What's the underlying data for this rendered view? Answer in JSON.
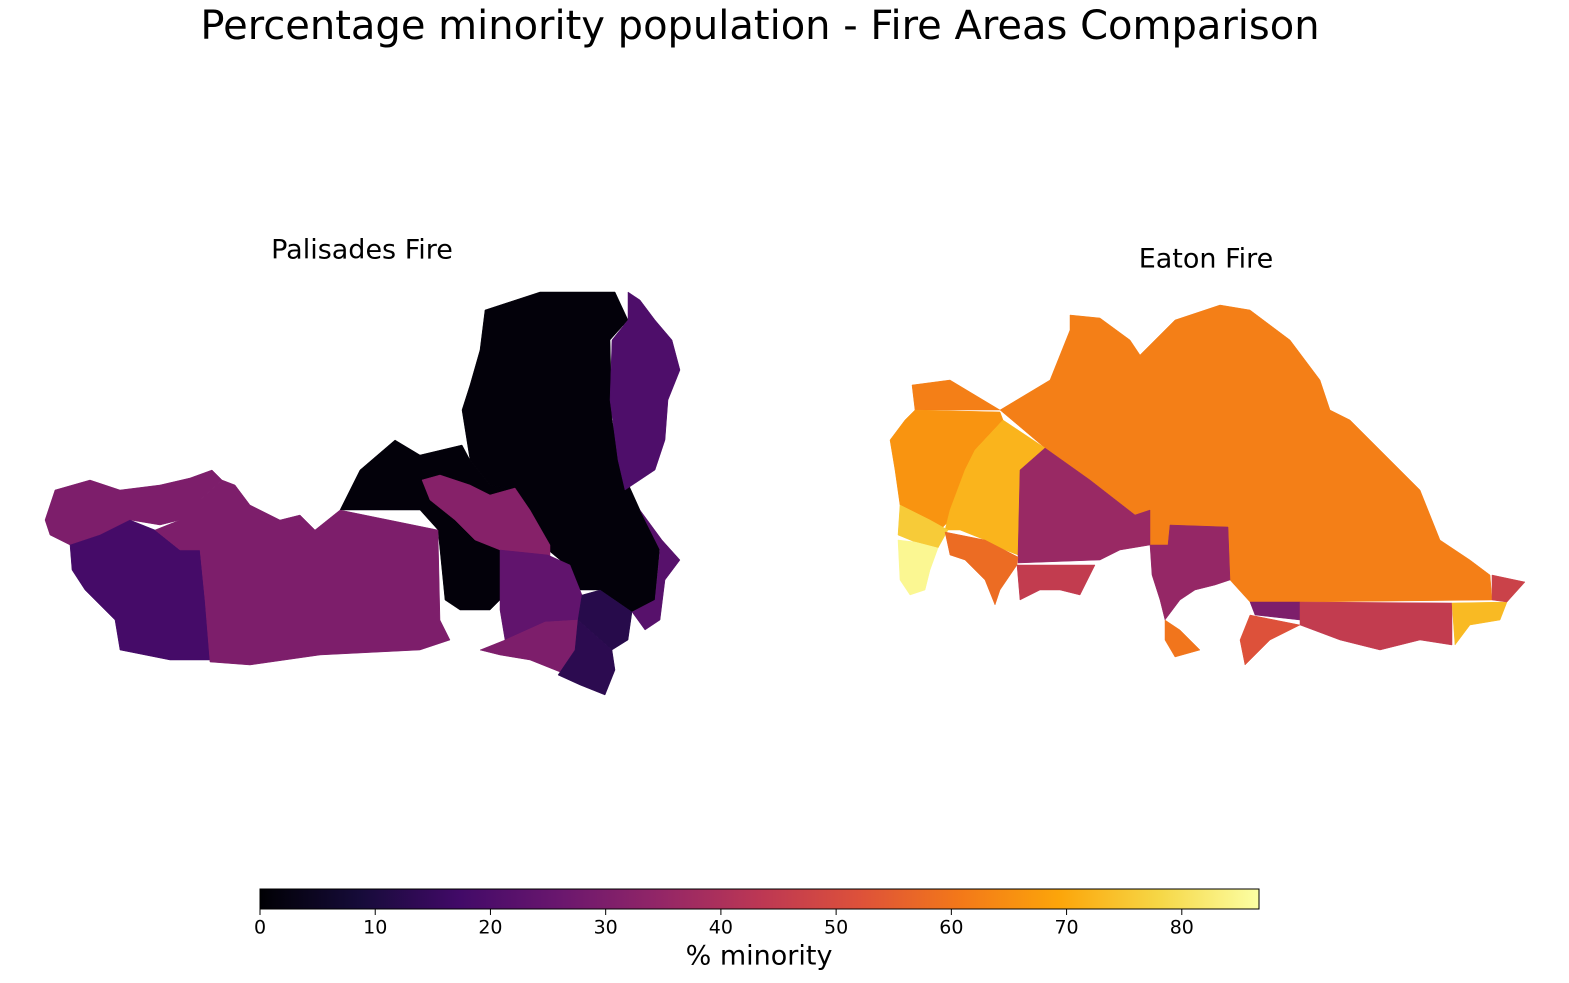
{
  "title": "Percentage minority population - Fire Areas Comparison",
  "maps": [
    {
      "title": "Palisades Fire",
      "regions": [
        1,
        1,
        20,
        30,
        18,
        30,
        32,
        24,
        30,
        12,
        13,
        22
      ]
    },
    {
      "title": "Eaton Fire",
      "regions": [
        62,
        66,
        72,
        76,
        85,
        36,
        58,
        45,
        35,
        30,
        45,
        60,
        73,
        47,
        52
      ]
    }
  ],
  "colorbar": {
    "label": "% minority",
    "lim": [
      0,
      86.7
    ],
    "ticks": [
      0,
      10,
      20,
      30,
      40,
      50,
      60,
      70,
      80
    ]
  }
}
